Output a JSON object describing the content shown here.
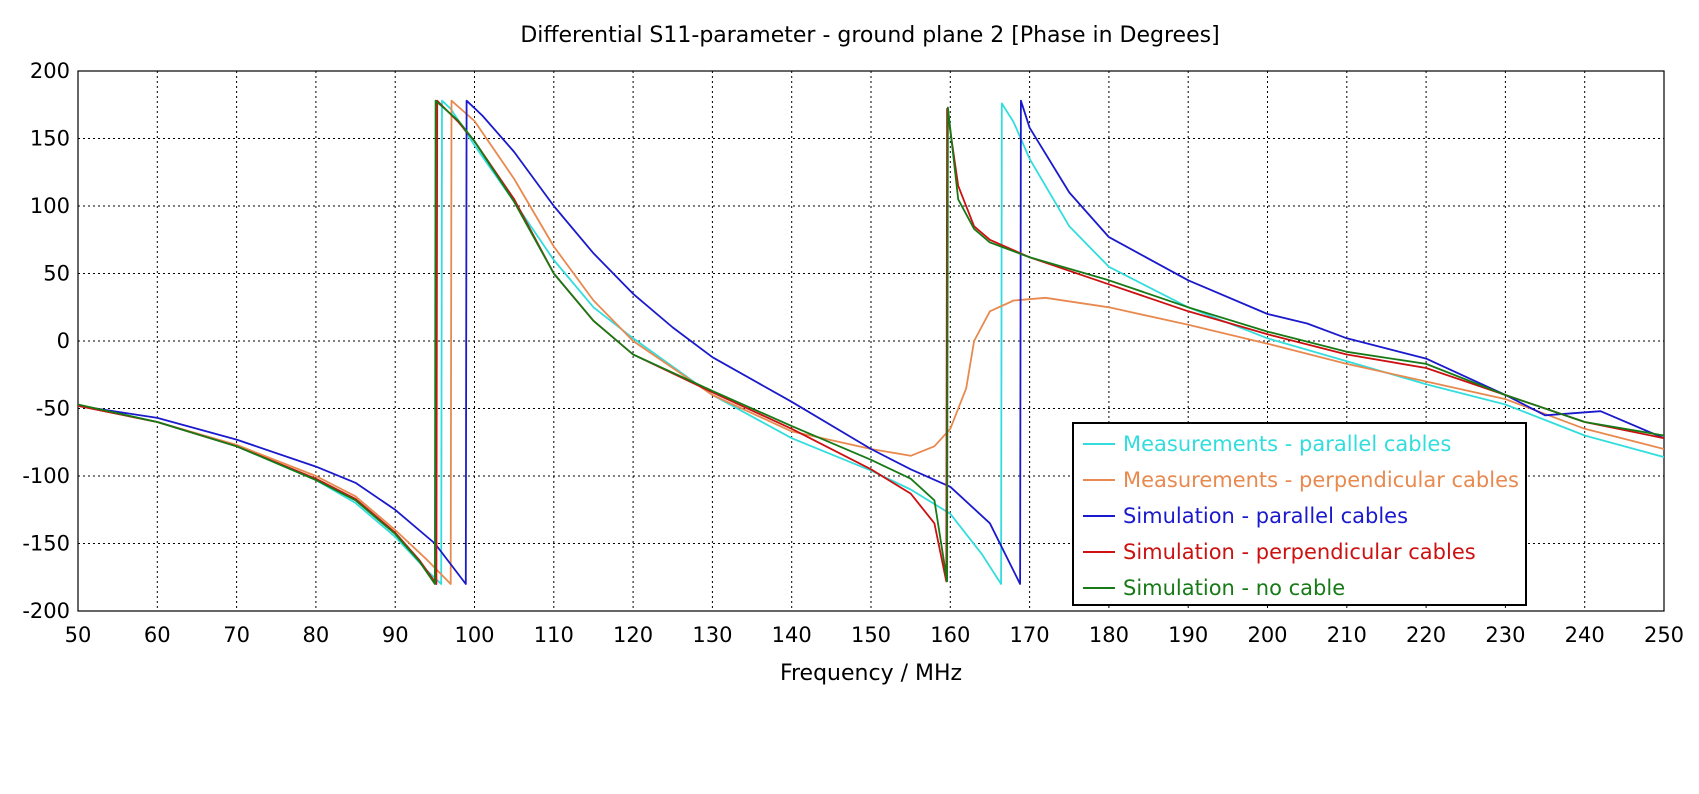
{
  "chart_data": {
    "type": "line",
    "title": "Differential S11-parameter - ground plane 2 [Phase in Degrees]",
    "xlabel": "Frequency / MHz",
    "ylabel": "",
    "xlim": [
      50,
      250
    ],
    "ylim": [
      -200,
      200
    ],
    "x_ticks": [
      50,
      60,
      70,
      80,
      90,
      100,
      110,
      120,
      130,
      140,
      150,
      160,
      170,
      180,
      190,
      200,
      210,
      220,
      230,
      240,
      250
    ],
    "y_ticks": [
      200,
      150,
      100,
      50,
      0,
      -50,
      -100,
      -150,
      -200
    ],
    "grid": true,
    "legend_position": "bottom-right",
    "series": [
      {
        "name": "Measurements - parallel cables",
        "color": "#33dddd",
        "points": [
          [
            50,
            -48
          ],
          [
            60,
            -60
          ],
          [
            70,
            -78
          ],
          [
            80,
            -103
          ],
          [
            85,
            -120
          ],
          [
            90,
            -145
          ],
          [
            94,
            -170
          ],
          [
            95.8,
            -180
          ],
          [
            95.9,
            178
          ],
          [
            97,
            172
          ],
          [
            100,
            145
          ],
          [
            105,
            103
          ],
          [
            110,
            60
          ],
          [
            115,
            25
          ],
          [
            120,
            2
          ],
          [
            130,
            -40
          ],
          [
            140,
            -72
          ],
          [
            150,
            -96
          ],
          [
            155,
            -110
          ],
          [
            160,
            -128
          ],
          [
            164,
            -158
          ],
          [
            166.4,
            -180
          ],
          [
            166.5,
            176
          ],
          [
            168,
            162
          ],
          [
            170,
            135
          ],
          [
            175,
            85
          ],
          [
            180,
            55
          ],
          [
            190,
            25
          ],
          [
            200,
            2
          ],
          [
            210,
            -15
          ],
          [
            220,
            -32
          ],
          [
            230,
            -47
          ],
          [
            240,
            -70
          ],
          [
            250,
            -86
          ]
        ]
      },
      {
        "name": "Measurements - perpendicular cables",
        "color": "#e88a50",
        "points": [
          [
            50,
            -48
          ],
          [
            60,
            -60
          ],
          [
            70,
            -77
          ],
          [
            80,
            -100
          ],
          [
            85,
            -115
          ],
          [
            90,
            -140
          ],
          [
            94,
            -162
          ],
          [
            97,
            -180
          ],
          [
            97.1,
            178
          ],
          [
            100,
            163
          ],
          [
            105,
            120
          ],
          [
            110,
            70
          ],
          [
            115,
            30
          ],
          [
            120,
            0
          ],
          [
            130,
            -40
          ],
          [
            140,
            -67
          ],
          [
            150,
            -80
          ],
          [
            155,
            -85
          ],
          [
            158,
            -78
          ],
          [
            160,
            -65
          ],
          [
            162,
            -35
          ],
          [
            163,
            0
          ],
          [
            165,
            22
          ],
          [
            168,
            30
          ],
          [
            172,
            32
          ],
          [
            180,
            25
          ],
          [
            190,
            12
          ],
          [
            200,
            -2
          ],
          [
            210,
            -17
          ],
          [
            220,
            -30
          ],
          [
            230,
            -43
          ],
          [
            240,
            -65
          ],
          [
            250,
            -80
          ]
        ]
      },
      {
        "name": "Simulation - parallel cables",
        "color": "#1a1acc",
        "points": [
          [
            50,
            -48
          ],
          [
            60,
            -57
          ],
          [
            70,
            -73
          ],
          [
            80,
            -93
          ],
          [
            85,
            -105
          ],
          [
            90,
            -125
          ],
          [
            95,
            -150
          ],
          [
            98.9,
            -180
          ],
          [
            99,
            178
          ],
          [
            101,
            167
          ],
          [
            105,
            140
          ],
          [
            110,
            100
          ],
          [
            115,
            65
          ],
          [
            120,
            35
          ],
          [
            125,
            10
          ],
          [
            130,
            -12
          ],
          [
            140,
            -45
          ],
          [
            150,
            -80
          ],
          [
            155,
            -95
          ],
          [
            160,
            -108
          ],
          [
            165,
            -135
          ],
          [
            168.8,
            -180
          ],
          [
            168.9,
            178
          ],
          [
            170,
            158
          ],
          [
            175,
            110
          ],
          [
            180,
            77
          ],
          [
            190,
            45
          ],
          [
            200,
            20
          ],
          [
            205,
            13
          ],
          [
            210,
            2
          ],
          [
            220,
            -13
          ],
          [
            230,
            -40
          ],
          [
            235,
            -55
          ],
          [
            242,
            -52
          ],
          [
            250,
            -72
          ]
        ]
      },
      {
        "name": "Simulation - perpendicular cables",
        "color": "#cc1111",
        "points": [
          [
            50,
            -48
          ],
          [
            60,
            -60
          ],
          [
            70,
            -78
          ],
          [
            80,
            -102
          ],
          [
            85,
            -117
          ],
          [
            90,
            -142
          ],
          [
            93,
            -162
          ],
          [
            95.2,
            -180
          ],
          [
            95.3,
            178
          ],
          [
            98,
            162
          ],
          [
            100,
            148
          ],
          [
            105,
            105
          ],
          [
            110,
            50
          ],
          [
            115,
            15
          ],
          [
            120,
            -10
          ],
          [
            130,
            -38
          ],
          [
            140,
            -65
          ],
          [
            150,
            -95
          ],
          [
            155,
            -113
          ],
          [
            158,
            -135
          ],
          [
            159.5,
            -178
          ],
          [
            159.6,
            172
          ],
          [
            161,
            115
          ],
          [
            163,
            85
          ],
          [
            165,
            75
          ],
          [
            170,
            62
          ],
          [
            180,
            42
          ],
          [
            190,
            22
          ],
          [
            200,
            5
          ],
          [
            210,
            -10
          ],
          [
            220,
            -20
          ],
          [
            230,
            -40
          ],
          [
            240,
            -60
          ],
          [
            250,
            -72
          ]
        ]
      },
      {
        "name": "Simulation - no cable",
        "color": "#177a17",
        "points": [
          [
            50,
            -47
          ],
          [
            60,
            -60
          ],
          [
            70,
            -78
          ],
          [
            80,
            -103
          ],
          [
            85,
            -118
          ],
          [
            90,
            -143
          ],
          [
            93,
            -163
          ],
          [
            95,
            -180
          ],
          [
            95.1,
            178
          ],
          [
            98,
            163
          ],
          [
            100,
            148
          ],
          [
            105,
            103
          ],
          [
            110,
            50
          ],
          [
            115,
            15
          ],
          [
            120,
            -10
          ],
          [
            130,
            -37
          ],
          [
            140,
            -63
          ],
          [
            150,
            -88
          ],
          [
            155,
            -102
          ],
          [
            158,
            -118
          ],
          [
            159.6,
            -178
          ],
          [
            159.7,
            173
          ],
          [
            161,
            105
          ],
          [
            163,
            83
          ],
          [
            165,
            73
          ],
          [
            170,
            62
          ],
          [
            180,
            45
          ],
          [
            190,
            25
          ],
          [
            200,
            7
          ],
          [
            210,
            -8
          ],
          [
            220,
            -17
          ],
          [
            230,
            -40
          ],
          [
            240,
            -60
          ],
          [
            250,
            -70
          ]
        ]
      }
    ]
  }
}
